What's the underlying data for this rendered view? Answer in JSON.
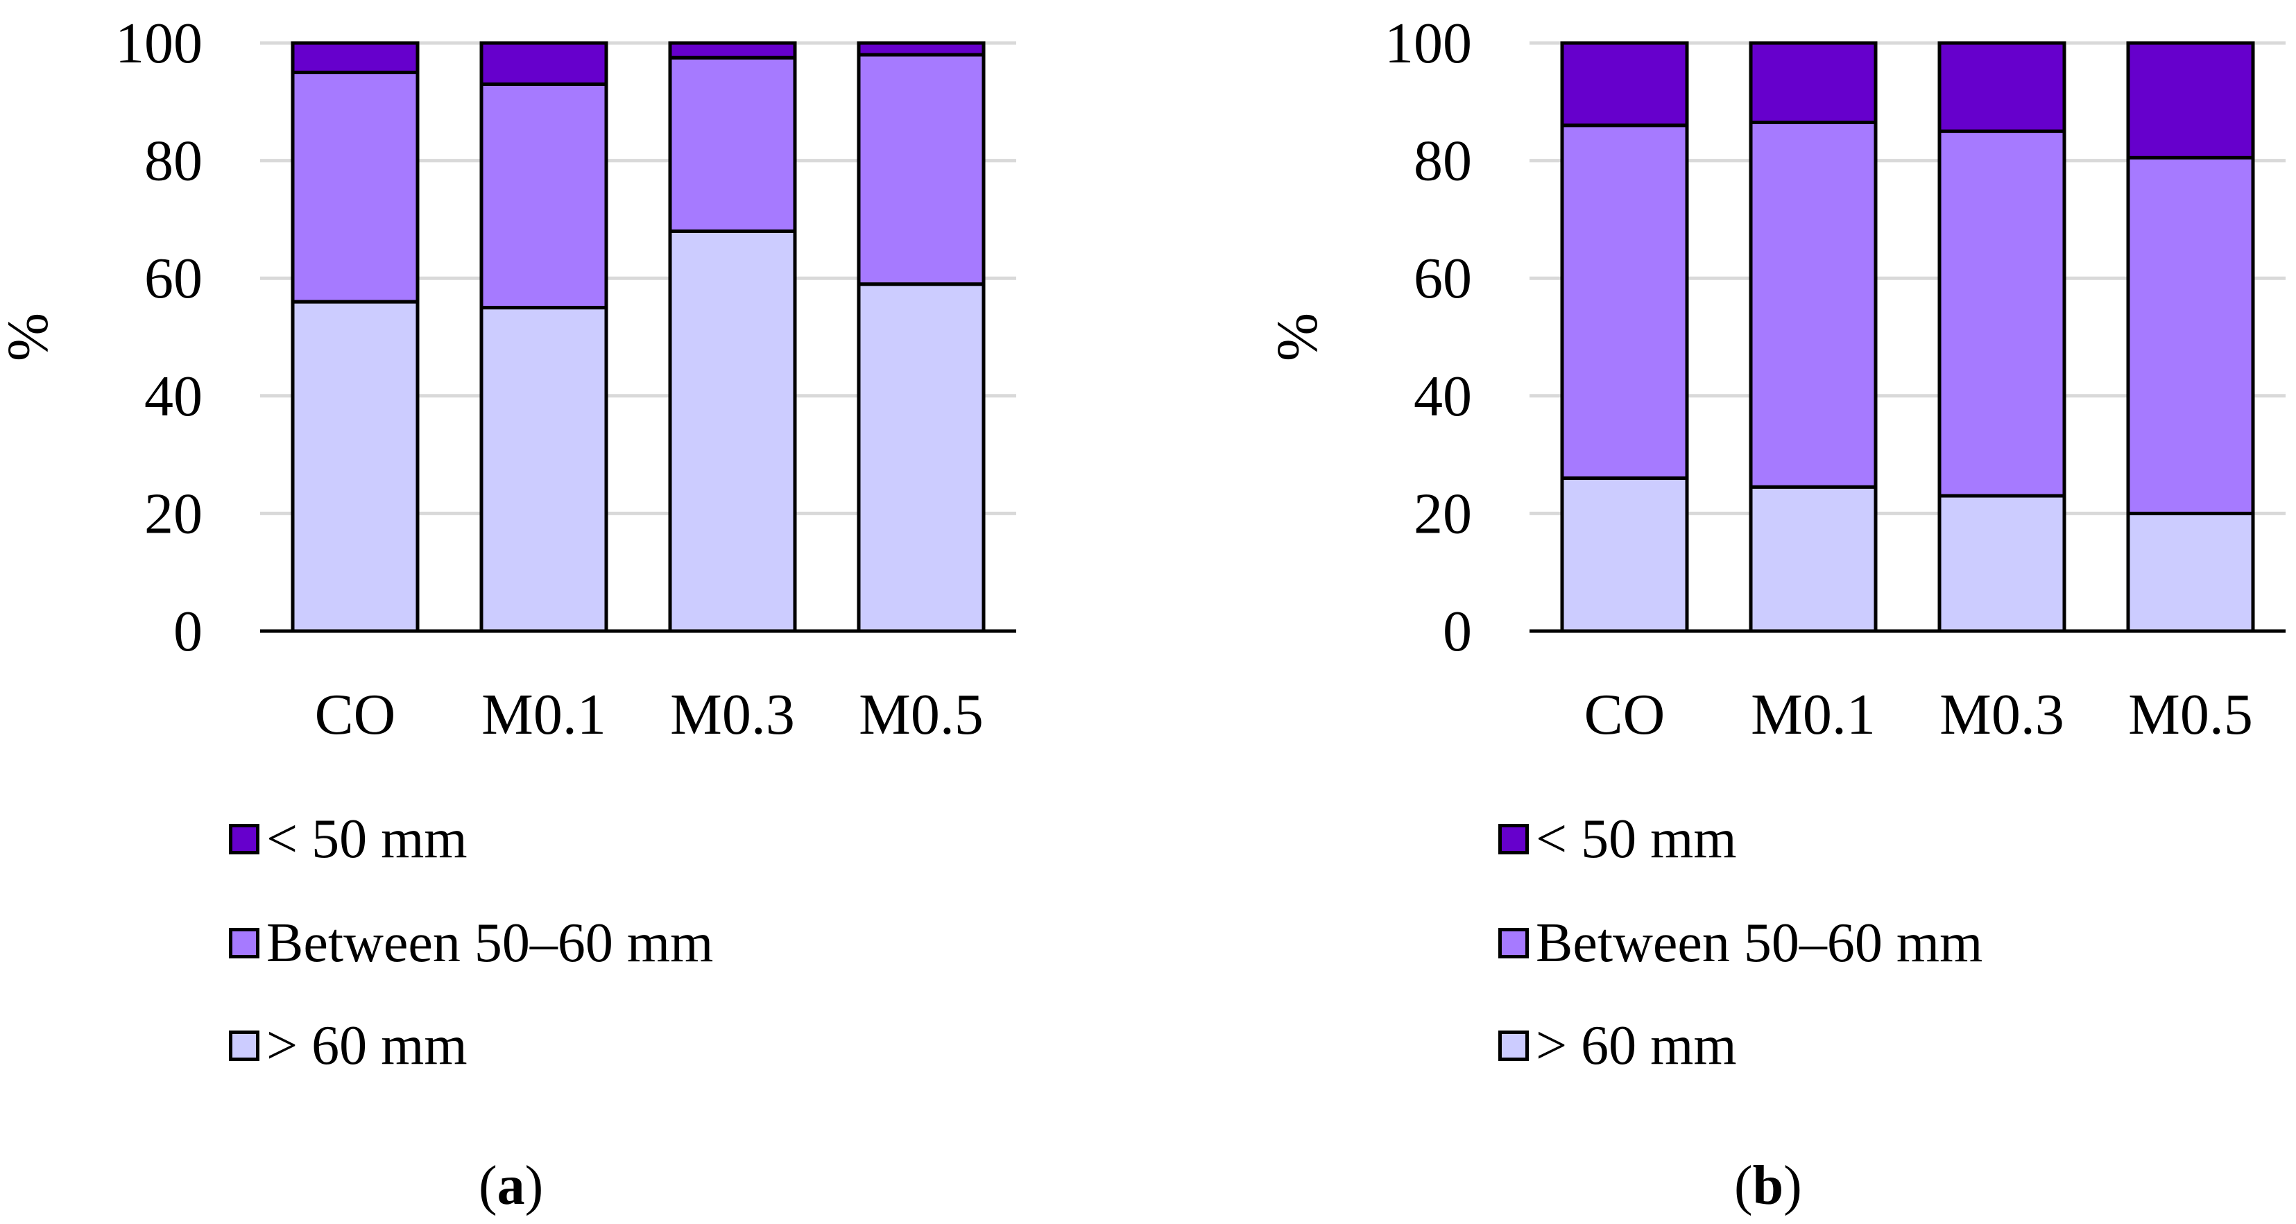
{
  "chart_data": [
    {
      "type": "bar",
      "stacked": true,
      "panel_label": "a",
      "categories": [
        "CO",
        "M0.1",
        "M0.3",
        "M0.5"
      ],
      "series": [
        {
          "name": "> 60 mm",
          "values": [
            56,
            55,
            68,
            59
          ],
          "color": "#ccccff"
        },
        {
          "name": "Between 50–60 mm",
          "values": [
            39,
            38,
            29.5,
            39
          ],
          "color": "#a67aff"
        },
        {
          "name": "< 50 mm",
          "values": [
            5,
            7,
            2.5,
            2
          ],
          "color": "#6600cc"
        }
      ],
      "legend_order": [
        "< 50 mm",
        "Between 50–60 mm",
        "> 60 mm"
      ],
      "ylabel": "%",
      "ylim": [
        0,
        100
      ],
      "yticks": [
        "0",
        "20",
        "40",
        "60",
        "80",
        "100"
      ],
      "grid": true,
      "legend_position": "bottom"
    },
    {
      "type": "bar",
      "stacked": true,
      "panel_label": "b",
      "categories": [
        "CO",
        "M0.1",
        "M0.3",
        "M0.5"
      ],
      "series": [
        {
          "name": "> 60 mm",
          "values": [
            26,
            24.5,
            23,
            20
          ],
          "color": "#ccccff"
        },
        {
          "name": "Between 50–60 mm",
          "values": [
            60,
            62,
            62,
            60.5
          ],
          "color": "#a67aff"
        },
        {
          "name": "< 50 mm",
          "values": [
            14,
            13.5,
            15,
            19.5
          ],
          "color": "#6600cc"
        }
      ],
      "legend_order": [
        "< 50 mm",
        "Between 50–60 mm",
        "> 60 mm"
      ],
      "ylabel": "%",
      "ylim": [
        0,
        100
      ],
      "yticks": [
        "0",
        "20",
        "40",
        "60",
        "80",
        "100"
      ],
      "grid": true,
      "legend_position": "bottom"
    }
  ]
}
